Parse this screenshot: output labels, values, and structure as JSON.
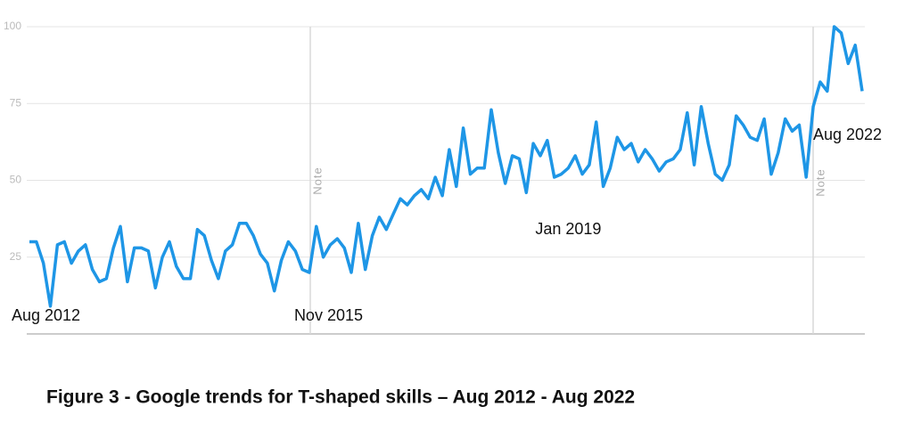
{
  "chart_data": {
    "type": "line",
    "title": "Figure 3 - Google trends for T-shaped skills – Aug 2012 - Aug 2022",
    "categories": [
      "Aug 2012",
      null,
      null,
      null,
      null,
      null,
      null,
      null,
      null,
      null,
      null,
      null,
      null,
      null,
      null,
      null,
      null,
      null,
      null,
      null,
      null,
      null,
      null,
      null,
      null,
      null,
      null,
      null,
      null,
      null,
      null,
      null,
      null,
      null,
      null,
      null,
      null,
      null,
      null,
      null,
      "Nov 2015",
      null,
      null,
      null,
      null,
      null,
      null,
      null,
      null,
      null,
      null,
      null,
      null,
      null,
      null,
      null,
      null,
      null,
      null,
      null,
      null,
      null,
      null,
      null,
      null,
      null,
      null,
      null,
      null,
      null,
      null,
      null,
      null,
      null,
      null,
      null,
      null,
      "Jan 2019",
      null,
      null,
      null,
      null,
      null,
      null,
      null,
      null,
      null,
      null,
      null,
      null,
      null,
      null,
      null,
      null,
      null,
      null,
      null,
      null,
      null,
      null,
      null,
      null,
      null,
      null,
      null,
      null,
      null,
      null,
      null,
      null,
      null,
      null,
      null,
      null,
      null,
      null,
      null,
      null,
      null,
      "Aug 2022"
    ],
    "values": [
      30,
      30,
      23,
      9,
      29,
      30,
      23,
      27,
      29,
      21,
      17,
      18,
      28,
      35,
      17,
      28,
      28,
      27,
      15,
      25,
      30,
      22,
      18,
      18,
      34,
      32,
      24,
      18,
      27,
      29,
      36,
      36,
      32,
      26,
      23,
      14,
      24,
      30,
      27,
      21,
      20,
      35,
      25,
      29,
      31,
      28,
      20,
      36,
      21,
      32,
      38,
      34,
      39,
      44,
      42,
      45,
      47,
      44,
      51,
      45,
      60,
      48,
      67,
      52,
      54,
      54,
      73,
      59,
      49,
      58,
      57,
      46,
      62,
      58,
      63,
      51,
      52,
      54,
      58,
      52,
      55,
      69,
      48,
      54,
      64,
      60,
      62,
      56,
      60,
      57,
      53,
      56,
      57,
      60,
      72,
      55,
      74,
      62,
      52,
      50,
      55,
      71,
      68,
      64,
      63,
      70,
      52,
      59,
      70,
      66,
      68,
      51,
      74,
      82,
      79,
      100,
      98,
      88,
      94,
      79
    ],
    "color": "#1e96e6",
    "ylim": [
      0,
      100
    ],
    "yticks": [
      25,
      50,
      75,
      100
    ],
    "grid": true,
    "notes": [
      "Note",
      "Note"
    ]
  }
}
